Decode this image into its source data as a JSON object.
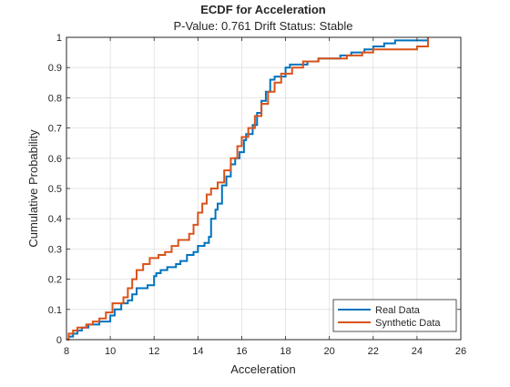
{
  "chart_data": {
    "type": "line",
    "step": true,
    "title": "ECDF for Acceleration",
    "subtitle": "P-Value: 0.761 Drift Status: Stable",
    "xlabel": "Acceleration",
    "ylabel": "Cumulative Probability",
    "xlim": [
      8,
      26
    ],
    "ylim": [
      0,
      1
    ],
    "xticks": [
      "8",
      "10",
      "12",
      "14",
      "16",
      "18",
      "20",
      "22",
      "24",
      "26"
    ],
    "yticks": [
      "0",
      "0.1",
      "0.2",
      "0.3",
      "0.4",
      "0.5",
      "0.6",
      "0.7",
      "0.8",
      "0.9",
      "1"
    ],
    "grid": true,
    "legend_position": "bottom-right",
    "series": [
      {
        "name": "Real Data",
        "color": "#0072BD",
        "x": [
          8,
          8.1,
          8.3,
          8.5,
          8.7,
          9.0,
          9.2,
          9.5,
          10.0,
          10.2,
          10.5,
          10.8,
          11.0,
          11.2,
          11.5,
          11.7,
          12.0,
          12.1,
          12.3,
          12.6,
          13.0,
          13.2,
          13.5,
          13.8,
          14.0,
          14.3,
          14.5,
          14.6,
          14.8,
          14.9,
          15.1,
          15.3,
          15.5,
          15.7,
          15.9,
          16.1,
          16.2,
          16.5,
          16.7,
          16.9,
          17.1,
          17.3,
          17.5,
          17.8,
          18.0,
          18.2,
          18.5,
          19.0,
          19.5,
          20.0,
          20.5,
          21.0,
          21.6,
          22.0,
          22.5,
          23.0,
          23.5,
          24.0,
          24.5
        ],
        "y": [
          0,
          0.01,
          0.02,
          0.03,
          0.04,
          0.05,
          0.05,
          0.06,
          0.08,
          0.1,
          0.12,
          0.13,
          0.15,
          0.17,
          0.17,
          0.18,
          0.21,
          0.22,
          0.23,
          0.24,
          0.25,
          0.26,
          0.28,
          0.29,
          0.31,
          0.32,
          0.34,
          0.4,
          0.43,
          0.45,
          0.51,
          0.54,
          0.58,
          0.6,
          0.62,
          0.66,
          0.68,
          0.71,
          0.75,
          0.79,
          0.82,
          0.86,
          0.87,
          0.87,
          0.9,
          0.91,
          0.91,
          0.92,
          0.93,
          0.93,
          0.94,
          0.95,
          0.96,
          0.97,
          0.98,
          0.99,
          0.99,
          0.99,
          1.0
        ]
      },
      {
        "name": "Synthetic Data",
        "color": "#D95319",
        "x": [
          8,
          8.1,
          8.3,
          8.5,
          8.9,
          9.2,
          9.5,
          9.8,
          10.1,
          10.6,
          10.8,
          11.0,
          11.2,
          11.5,
          11.8,
          12.2,
          12.5,
          12.8,
          13.1,
          13.6,
          13.8,
          14.0,
          14.2,
          14.4,
          14.6,
          14.9,
          15.2,
          15.5,
          15.8,
          16.0,
          16.3,
          16.6,
          16.9,
          17.2,
          17.5,
          17.8,
          18.3,
          18.8,
          19.5,
          20.0,
          20.8,
          21.5,
          22.0,
          23.0,
          24.0,
          24.5
        ],
        "y": [
          0,
          0.02,
          0.03,
          0.04,
          0.05,
          0.06,
          0.07,
          0.09,
          0.12,
          0.14,
          0.17,
          0.2,
          0.23,
          0.25,
          0.27,
          0.28,
          0.29,
          0.31,
          0.33,
          0.35,
          0.38,
          0.42,
          0.45,
          0.48,
          0.5,
          0.52,
          0.56,
          0.6,
          0.64,
          0.67,
          0.7,
          0.74,
          0.78,
          0.82,
          0.85,
          0.88,
          0.9,
          0.92,
          0.93,
          0.93,
          0.94,
          0.95,
          0.96,
          0.96,
          0.97,
          1.0
        ]
      }
    ]
  }
}
